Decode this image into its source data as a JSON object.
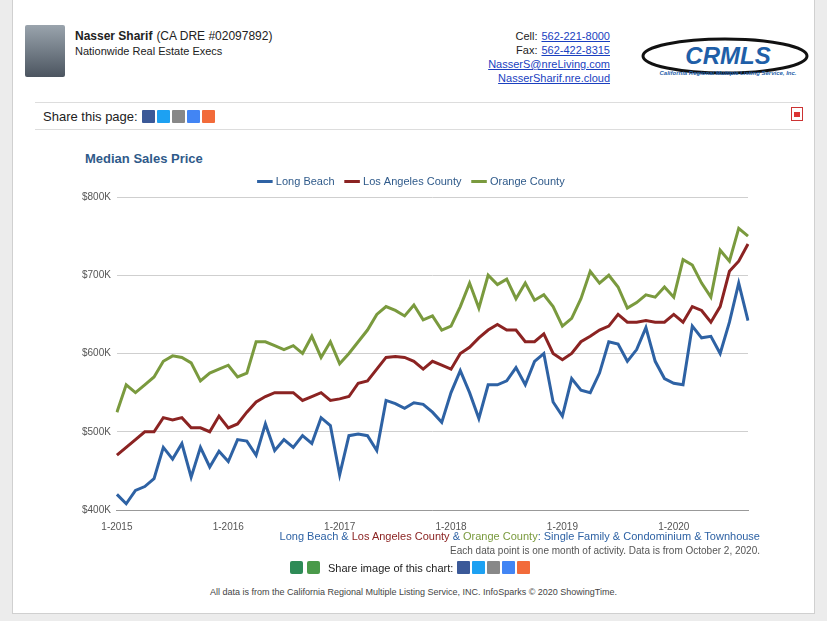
{
  "page": {
    "agent": {
      "name": "Nasser Sharif",
      "license": "(CA DRE #02097892)",
      "company": "Nationwide Real Estate Execs"
    },
    "contacts": [
      {
        "label": "Cell:",
        "value": "562-221-8000"
      },
      {
        "label": "Fax:",
        "value": "562-422-8315"
      },
      {
        "label": null,
        "value": "NasserS@nreLiving.com"
      },
      {
        "label": null,
        "value": "NasserSharif.nre.cloud"
      }
    ],
    "logo": {
      "text": "CRMLS",
      "subtitle": "California Regional Multiple Listing Service, Inc."
    },
    "share_page": "Share this page:",
    "caption": [
      {
        "text": "Long Beach",
        "color": "#2e62a4"
      },
      {
        "text": " & ",
        "color": "#2e62a4"
      },
      {
        "text": "Los Angeles County",
        "color": "#8b2322"
      },
      {
        "text": " & ",
        "color": "#2e62a4"
      },
      {
        "text": "Orange County",
        "color": "#7a9a3e"
      },
      {
        "text": ": Single Family & Condominium & Townhouse",
        "color": "#2e62a4"
      }
    ],
    "note": "Each data point is one month of activity. Data is from October 2, 2020.",
    "share_image": "Share image of this chart:",
    "footer": "All data is from the California Regional Multiple Listing Service, INC. InfoSparks © 2020 ShowingTime."
  },
  "chart_data": {
    "type": "line",
    "title": "Median Sales Price",
    "categories": [
      "1-2015",
      null,
      null,
      null,
      null,
      null,
      null,
      null,
      null,
      null,
      null,
      null,
      "1-2016",
      null,
      null,
      null,
      null,
      null,
      null,
      null,
      null,
      null,
      null,
      null,
      "1-2017",
      null,
      null,
      null,
      null,
      null,
      null,
      null,
      null,
      null,
      null,
      null,
      "1-2018",
      null,
      null,
      null,
      null,
      null,
      null,
      null,
      null,
      null,
      null,
      null,
      "1-2019",
      null,
      null,
      null,
      null,
      null,
      null,
      null,
      null,
      null,
      null,
      null,
      "1-2020",
      null,
      null,
      null,
      null,
      null,
      null,
      null,
      null
    ],
    "series": [
      {
        "name": "Long Beach",
        "color": "#2e62a4",
        "marker": "none",
        "values": [
          420000,
          408000,
          425000,
          430000,
          440000,
          480000,
          465000,
          485000,
          442000,
          480000,
          455000,
          475000,
          462000,
          490000,
          488000,
          470000,
          510000,
          476000,
          490000,
          480000,
          495000,
          485000,
          518000,
          508000,
          445000,
          495000,
          497000,
          495000,
          476000,
          540000,
          536000,
          530000,
          537000,
          535000,
          525000,
          512000,
          550000,
          578000,
          550000,
          517000,
          560000,
          560000,
          565000,
          582000,
          560000,
          590000,
          600000,
          538000,
          520000,
          568000,
          553000,
          550000,
          575000,
          615000,
          612000,
          590000,
          605000,
          633000,
          590000,
          568000,
          562000,
          560000,
          635000,
          620000,
          622000,
          600000,
          640000,
          690000,
          642000
        ]
      },
      {
        "name": "Los Angeles County",
        "color": "#8b2322",
        "marker": "none",
        "values": [
          470000,
          480000,
          490000,
          500000,
          500000,
          518000,
          515000,
          518000,
          505000,
          505000,
          500000,
          520000,
          505000,
          510000,
          525000,
          538000,
          545000,
          550000,
          550000,
          550000,
          540000,
          545000,
          550000,
          540000,
          542000,
          545000,
          562000,
          565000,
          580000,
          595000,
          596000,
          595000,
          590000,
          580000,
          590000,
          585000,
          580000,
          600000,
          608000,
          620000,
          630000,
          637000,
          630000,
          630000,
          615000,
          615000,
          625000,
          600000,
          592000,
          600000,
          615000,
          622000,
          630000,
          635000,
          650000,
          640000,
          640000,
          642000,
          640000,
          640000,
          650000,
          640000,
          660000,
          655000,
          640000,
          660000,
          705000,
          718000,
          740000
        ]
      },
      {
        "name": "Orange County",
        "color": "#7a9a3e",
        "marker": "none",
        "values": [
          525000,
          560000,
          550000,
          560000,
          570000,
          590000,
          597000,
          595000,
          588000,
          565000,
          575000,
          580000,
          585000,
          570000,
          575000,
          615000,
          615000,
          610000,
          605000,
          610000,
          600000,
          622000,
          595000,
          615000,
          587000,
          600000,
          615000,
          630000,
          650000,
          660000,
          655000,
          648000,
          662000,
          643000,
          648000,
          630000,
          635000,
          660000,
          690000,
          658000,
          700000,
          688000,
          695000,
          670000,
          690000,
          668000,
          675000,
          660000,
          635000,
          645000,
          670000,
          705000,
          690000,
          700000,
          685000,
          658000,
          665000,
          675000,
          672000,
          685000,
          672000,
          720000,
          713000,
          690000,
          672000,
          732000,
          718000,
          760000,
          750000
        ]
      }
    ],
    "ylim": [
      400000,
      800000
    ],
    "yticks": [
      {
        "value": 400000,
        "label": "$400K"
      },
      {
        "value": 500000,
        "label": "$500K"
      },
      {
        "value": 600000,
        "label": "$600K"
      },
      {
        "value": 700000,
        "label": "$700K"
      },
      {
        "value": 800000,
        "label": "$800K"
      }
    ],
    "grid": true,
    "legend": "top"
  }
}
